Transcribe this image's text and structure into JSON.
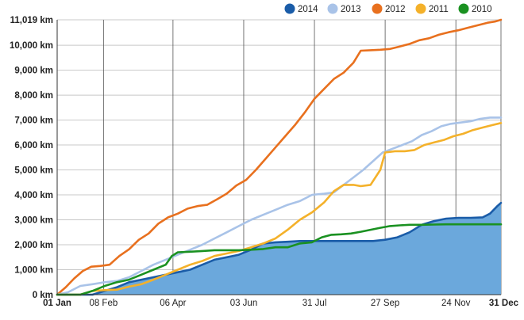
{
  "chart_data": {
    "type": "line",
    "title": "",
    "xlabel": "",
    "ylabel": "",
    "x_unit": "day of year",
    "xlim": [
      1,
      365
    ],
    "ylim": [
      0,
      11019
    ],
    "grid": true,
    "legend_position": "top-right",
    "y_ticks": [
      {
        "value": 0,
        "label": "0 km"
      },
      {
        "value": 1000,
        "label": "1,000 km"
      },
      {
        "value": 2000,
        "label": "2,000 km"
      },
      {
        "value": 3000,
        "label": "3,000 km"
      },
      {
        "value": 4000,
        "label": "4,000 km"
      },
      {
        "value": 5000,
        "label": "5,000 km"
      },
      {
        "value": 6000,
        "label": "6,000 km"
      },
      {
        "value": 7000,
        "label": "7,000 km"
      },
      {
        "value": 8000,
        "label": "8,000 km"
      },
      {
        "value": 9000,
        "label": "9,000 km"
      },
      {
        "value": 10000,
        "label": "10,000 km"
      },
      {
        "value": 11019,
        "label": "11,019 km"
      }
    ],
    "x_ticks": [
      {
        "day": 1,
        "label": "01 Jan",
        "bold": true
      },
      {
        "day": 39,
        "label": "08 Feb",
        "bold": false
      },
      {
        "day": 96,
        "label": "06 Apr",
        "bold": false
      },
      {
        "day": 154,
        "label": "03 Jun",
        "bold": false
      },
      {
        "day": 212,
        "label": "31 Jul",
        "bold": false
      },
      {
        "day": 270,
        "label": "27 Sep",
        "bold": false
      },
      {
        "day": 328,
        "label": "24 Nov",
        "bold": false
      },
      {
        "day": 365,
        "label": "31 Dec",
        "bold": true
      }
    ],
    "series": [
      {
        "name": "2012",
        "color": "#e8701e",
        "filled": false,
        "points": [
          [
            1,
            0
          ],
          [
            8,
            300
          ],
          [
            15,
            650
          ],
          [
            22,
            950
          ],
          [
            29,
            1120
          ],
          [
            36,
            1150
          ],
          [
            44,
            1200
          ],
          [
            52,
            1550
          ],
          [
            60,
            1820
          ],
          [
            68,
            2200
          ],
          [
            76,
            2450
          ],
          [
            84,
            2850
          ],
          [
            92,
            3100
          ],
          [
            100,
            3250
          ],
          [
            108,
            3450
          ],
          [
            116,
            3550
          ],
          [
            124,
            3600
          ],
          [
            132,
            3820
          ],
          [
            140,
            4050
          ],
          [
            148,
            4380
          ],
          [
            156,
            4600
          ],
          [
            164,
            5000
          ],
          [
            172,
            5450
          ],
          [
            180,
            5900
          ],
          [
            188,
            6350
          ],
          [
            196,
            6800
          ],
          [
            204,
            7300
          ],
          [
            212,
            7850
          ],
          [
            220,
            8250
          ],
          [
            228,
            8650
          ],
          [
            236,
            8900
          ],
          [
            244,
            9300
          ],
          [
            250,
            9780
          ],
          [
            258,
            9800
          ],
          [
            266,
            9820
          ],
          [
            274,
            9850
          ],
          [
            282,
            9950
          ],
          [
            290,
            10050
          ],
          [
            298,
            10200
          ],
          [
            306,
            10280
          ],
          [
            314,
            10420
          ],
          [
            322,
            10520
          ],
          [
            330,
            10600
          ],
          [
            338,
            10700
          ],
          [
            346,
            10800
          ],
          [
            354,
            10900
          ],
          [
            360,
            10950
          ],
          [
            365,
            11019
          ]
        ]
      },
      {
        "name": "2013",
        "color": "#a9c3e8",
        "filled": false,
        "points": [
          [
            1,
            0
          ],
          [
            10,
            100
          ],
          [
            20,
            350
          ],
          [
            30,
            420
          ],
          [
            40,
            500
          ],
          [
            50,
            550
          ],
          [
            60,
            700
          ],
          [
            70,
            950
          ],
          [
            80,
            1200
          ],
          [
            90,
            1400
          ],
          [
            100,
            1600
          ],
          [
            110,
            1800
          ],
          [
            120,
            2000
          ],
          [
            130,
            2250
          ],
          [
            140,
            2500
          ],
          [
            150,
            2750
          ],
          [
            160,
            3000
          ],
          [
            170,
            3200
          ],
          [
            180,
            3400
          ],
          [
            190,
            3600
          ],
          [
            200,
            3750
          ],
          [
            210,
            4000
          ],
          [
            220,
            4050
          ],
          [
            228,
            4100
          ],
          [
            236,
            4400
          ],
          [
            244,
            4700
          ],
          [
            252,
            5000
          ],
          [
            260,
            5350
          ],
          [
            268,
            5700
          ],
          [
            276,
            5850
          ],
          [
            284,
            6000
          ],
          [
            292,
            6150
          ],
          [
            300,
            6400
          ],
          [
            308,
            6550
          ],
          [
            316,
            6750
          ],
          [
            324,
            6850
          ],
          [
            332,
            6900
          ],
          [
            340,
            6950
          ],
          [
            348,
            7050
          ],
          [
            356,
            7100
          ],
          [
            365,
            7100
          ]
        ]
      },
      {
        "name": "2011",
        "color": "#f4b12a",
        "filled": false,
        "points": [
          [
            1,
            0
          ],
          [
            20,
            0
          ],
          [
            30,
            150
          ],
          [
            40,
            180
          ],
          [
            50,
            200
          ],
          [
            60,
            320
          ],
          [
            70,
            420
          ],
          [
            80,
            600
          ],
          [
            90,
            800
          ],
          [
            100,
            1000
          ],
          [
            110,
            1200
          ],
          [
            120,
            1350
          ],
          [
            130,
            1550
          ],
          [
            140,
            1650
          ],
          [
            150,
            1750
          ],
          [
            160,
            1900
          ],
          [
            170,
            2050
          ],
          [
            180,
            2250
          ],
          [
            190,
            2600
          ],
          [
            200,
            3000
          ],
          [
            210,
            3300
          ],
          [
            220,
            3700
          ],
          [
            228,
            4150
          ],
          [
            236,
            4400
          ],
          [
            244,
            4400
          ],
          [
            250,
            4350
          ],
          [
            258,
            4400
          ],
          [
            266,
            5000
          ],
          [
            270,
            5700
          ],
          [
            278,
            5750
          ],
          [
            286,
            5750
          ],
          [
            294,
            5800
          ],
          [
            302,
            6000
          ],
          [
            310,
            6100
          ],
          [
            318,
            6200
          ],
          [
            326,
            6350
          ],
          [
            334,
            6450
          ],
          [
            342,
            6600
          ],
          [
            350,
            6700
          ],
          [
            358,
            6800
          ],
          [
            365,
            6880
          ]
        ]
      },
      {
        "name": "2010",
        "color": "#1a9121",
        "filled": false,
        "points": [
          [
            1,
            0
          ],
          [
            20,
            0
          ],
          [
            30,
            150
          ],
          [
            40,
            350
          ],
          [
            50,
            500
          ],
          [
            60,
            600
          ],
          [
            70,
            800
          ],
          [
            80,
            1000
          ],
          [
            90,
            1200
          ],
          [
            95,
            1550
          ],
          [
            100,
            1700
          ],
          [
            110,
            1720
          ],
          [
            120,
            1750
          ],
          [
            130,
            1780
          ],
          [
            140,
            1780
          ],
          [
            150,
            1780
          ],
          [
            160,
            1800
          ],
          [
            170,
            1830
          ],
          [
            180,
            1900
          ],
          [
            190,
            1900
          ],
          [
            200,
            2050
          ],
          [
            210,
            2100
          ],
          [
            218,
            2300
          ],
          [
            226,
            2400
          ],
          [
            234,
            2420
          ],
          [
            242,
            2450
          ],
          [
            250,
            2520
          ],
          [
            258,
            2600
          ],
          [
            266,
            2680
          ],
          [
            274,
            2750
          ],
          [
            282,
            2780
          ],
          [
            290,
            2800
          ],
          [
            300,
            2800
          ],
          [
            310,
            2810
          ],
          [
            320,
            2820
          ],
          [
            330,
            2820
          ],
          [
            340,
            2820
          ],
          [
            350,
            2820
          ],
          [
            365,
            2820
          ]
        ]
      },
      {
        "name": "2014",
        "color": "#1a5ca8",
        "filled": true,
        "fill_color": "#6ba8dc",
        "points": [
          [
            1,
            0
          ],
          [
            30,
            0
          ],
          [
            40,
            150
          ],
          [
            50,
            300
          ],
          [
            60,
            500
          ],
          [
            70,
            600
          ],
          [
            80,
            700
          ],
          [
            90,
            800
          ],
          [
            100,
            900
          ],
          [
            110,
            1000
          ],
          [
            120,
            1200
          ],
          [
            130,
            1400
          ],
          [
            140,
            1500
          ],
          [
            150,
            1600
          ],
          [
            160,
            1800
          ],
          [
            170,
            2050
          ],
          [
            180,
            2100
          ],
          [
            190,
            2120
          ],
          [
            200,
            2150
          ],
          [
            210,
            2150
          ],
          [
            220,
            2150
          ],
          [
            230,
            2150
          ],
          [
            240,
            2150
          ],
          [
            250,
            2150
          ],
          [
            260,
            2150
          ],
          [
            270,
            2200
          ],
          [
            280,
            2300
          ],
          [
            290,
            2500
          ],
          [
            300,
            2800
          ],
          [
            310,
            2950
          ],
          [
            320,
            3050
          ],
          [
            330,
            3080
          ],
          [
            340,
            3080
          ],
          [
            350,
            3100
          ],
          [
            356,
            3250
          ],
          [
            362,
            3550
          ],
          [
            365,
            3680
          ]
        ]
      }
    ],
    "legend_order": [
      "2014",
      "2013",
      "2012",
      "2011",
      "2010"
    ]
  }
}
